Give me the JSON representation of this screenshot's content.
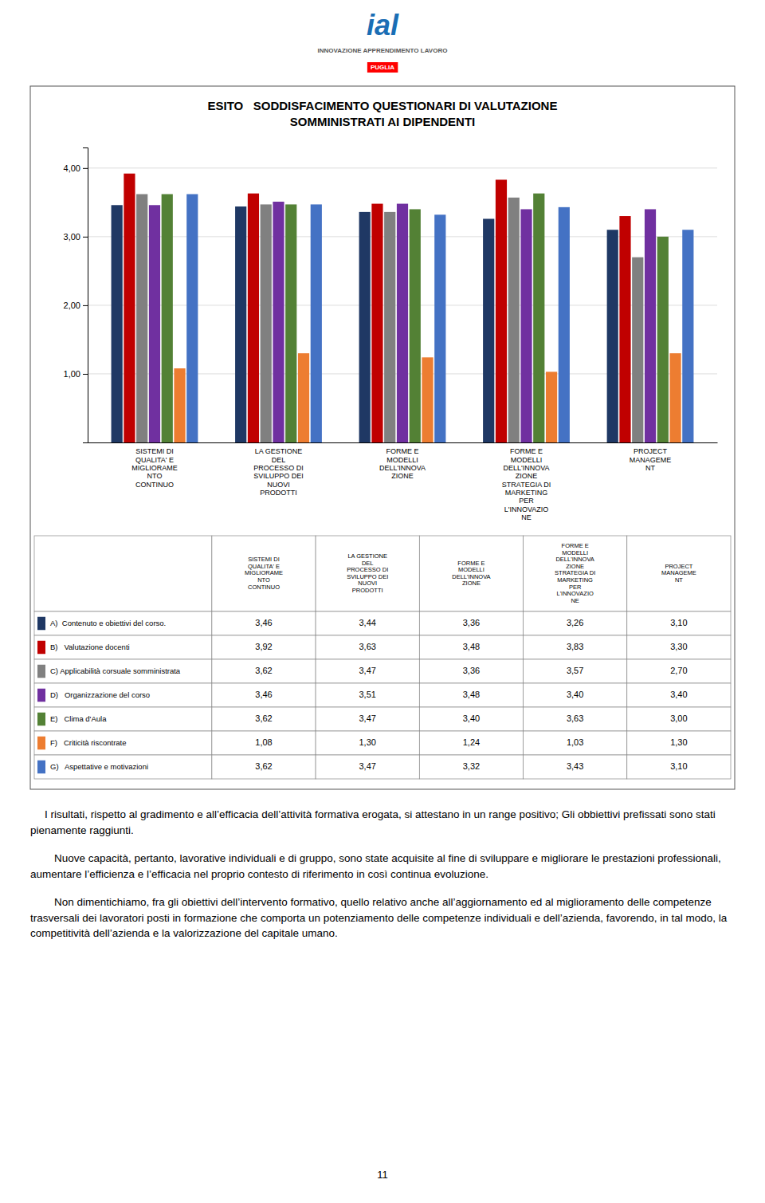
{
  "logo": {
    "name": "ial",
    "tagline": "INNOVAZIONE APPRENDIMENTO LAVORO",
    "region": "PUGLIA"
  },
  "chart_data": {
    "type": "bar",
    "title": "ESITO   SODDISFACIMENTO QUESTIONARI DI VALUTAZIONE\nSOMMINISTRATI AI DIPENDENTI",
    "categories": [
      "SISTEMI DI\nQUALITA' E\nMIGLIORAME\nNTO\nCONTINUO",
      "LA GESTIONE\nDEL\nPROCESSO DI\nSVILUPPO DEI\nNUOVI\nPRODOTTI",
      "FORME E\nMODELLI\nDELL'INNOVA\nZIONE",
      "FORME E\nMODELLI\nDELL'INNOVA\nZIONE\nSTRATEGIA DI\nMARKETING\nPER\nL'INNOVAZIO\nNE",
      "PROJECT\nMANAGEME\nNT"
    ],
    "series": [
      {
        "name": "A)  Contenuto e obiettivi del corso.",
        "color": "#1F3864",
        "values": [
          3.46,
          3.44,
          3.36,
          3.26,
          3.1
        ],
        "value_labels": [
          "3,46",
          "3,44",
          "3,36",
          "3,26",
          "3,10"
        ]
      },
      {
        "name": "B)   Valutazione docenti",
        "color": "#C00000",
        "values": [
          3.92,
          3.63,
          3.48,
          3.83,
          3.3
        ],
        "value_labels": [
          "3,92",
          "3,63",
          "3,48",
          "3,83",
          "3,30"
        ]
      },
      {
        "name": "C) Applicabilità corsuale somministrata",
        "color": "#808080",
        "values": [
          3.62,
          3.47,
          3.36,
          3.57,
          2.7
        ],
        "value_labels": [
          "3,62",
          "3,47",
          "3,36",
          "3,57",
          "2,70"
        ]
      },
      {
        "name": "D)   Organizzazione del corso",
        "color": "#7030A0",
        "values": [
          3.46,
          3.51,
          3.48,
          3.4,
          3.4
        ],
        "value_labels": [
          "3,46",
          "3,51",
          "3,48",
          "3,40",
          "3,40"
        ]
      },
      {
        "name": "E)   Clima d'Aula",
        "color": "#538135",
        "values": [
          3.62,
          3.47,
          3.4,
          3.63,
          3.0
        ],
        "value_labels": [
          "3,62",
          "3,47",
          "3,40",
          "3,63",
          "3,00"
        ]
      },
      {
        "name": "F)   Criticità riscontrate",
        "color": "#ED7D31",
        "values": [
          1.08,
          1.3,
          1.24,
          1.03,
          1.3
        ],
        "value_labels": [
          "1,08",
          "1,30",
          "1,24",
          "1,03",
          "1,30"
        ]
      },
      {
        "name": "G)   Aspettative e motivazioni",
        "color": "#4472C4",
        "values": [
          3.62,
          3.47,
          3.32,
          3.43,
          3.1
        ],
        "value_labels": [
          "3,62",
          "3,47",
          "3,32",
          "3,43",
          "3,10"
        ]
      }
    ],
    "ylim": [
      0,
      4.3
    ],
    "yticks": [
      {
        "value": 1,
        "label": "1,00"
      },
      {
        "value": 2,
        "label": "2,00"
      },
      {
        "value": 3,
        "label": "3,00"
      },
      {
        "value": 4,
        "label": "4,00"
      }
    ],
    "grid": true
  },
  "paragraphs": [
    "I risultati, rispetto al gradimento e all’efficacia dell’attività formativa erogata, si attestano in un range positivo; Gli obbiettivi prefissati sono stati pienamente raggiunti.",
    "Nuove capacità, pertanto, lavorative individuali e di gruppo, sono state acquisite al fine di sviluppare e migliorare le prestazioni professionali, aumentare l’efficienza e l’efficacia nel proprio contesto di riferimento in così continua evoluzione.",
    "Non dimentichiamo, fra gli obiettivi dell’intervento formativo, quello relativo anche all’aggiornamento ed al miglioramento delle competenze trasversali dei lavoratori posti in formazione che comporta un potenziamento delle competenze individuali e dell’azienda, favorendo, in tal modo, la competitività dell’azienda e la valorizzazione del capitale umano."
  ],
  "page_number": "11"
}
